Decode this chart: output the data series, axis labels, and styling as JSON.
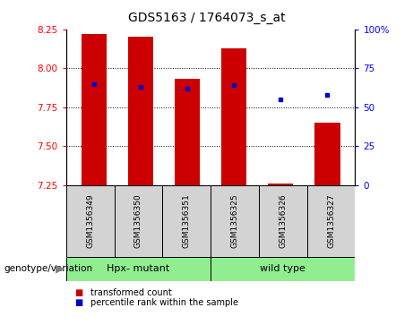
{
  "title": "GDS5163 / 1764073_s_at",
  "samples": [
    "GSM1356349",
    "GSM1356350",
    "GSM1356351",
    "GSM1356325",
    "GSM1356326",
    "GSM1356327"
  ],
  "bar_values": [
    8.22,
    8.2,
    7.93,
    8.13,
    7.26,
    7.65
  ],
  "percentile_values": [
    65,
    63,
    62,
    64,
    55,
    58
  ],
  "bar_color": "#cc0000",
  "dot_color": "#0000cc",
  "ylim_left": [
    7.25,
    8.25
  ],
  "ylim_right": [
    0,
    100
  ],
  "yticks_left": [
    7.25,
    7.5,
    7.75,
    8.0,
    8.25
  ],
  "yticks_right": [
    0,
    25,
    50,
    75,
    100
  ],
  "ytick_labels_right": [
    "0",
    "25",
    "50",
    "75",
    "100%"
  ],
  "grid_values": [
    7.5,
    7.75,
    8.0
  ],
  "group1_label": "Hpx- mutant",
  "group2_label": "wild type",
  "group_label_text": "genotype/variation",
  "group_color": "#90ee90",
  "label_box_color": "#d3d3d3",
  "legend_items": [
    {
      "label": "transformed count",
      "color": "#cc0000"
    },
    {
      "label": "percentile rank within the sample",
      "color": "#0000cc"
    }
  ],
  "bar_width": 0.55,
  "bar_bottom": 7.25
}
